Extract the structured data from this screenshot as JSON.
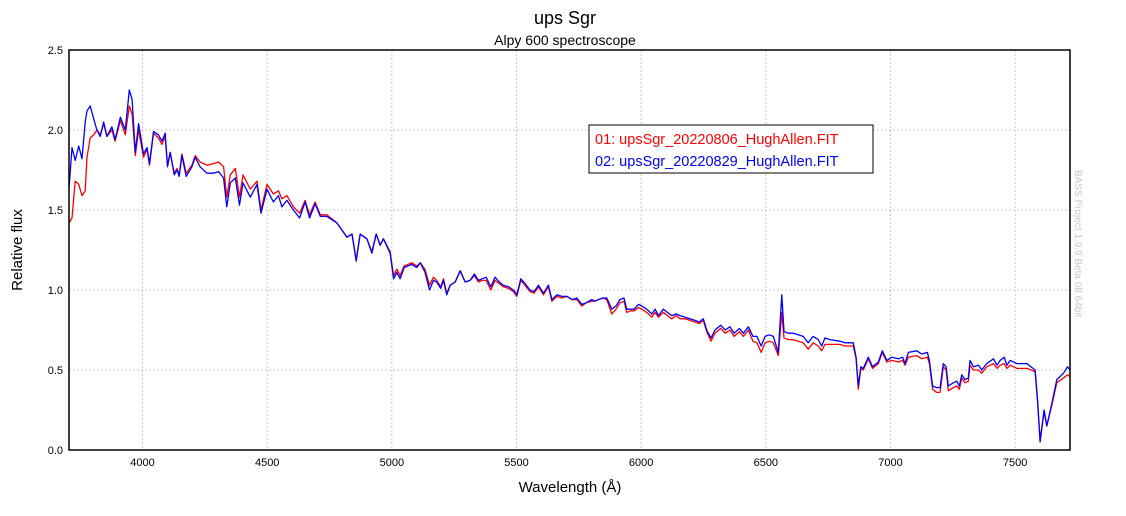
{
  "chart_data": {
    "type": "line",
    "title": "ups Sgr",
    "subtitle": "Alpy 600 spectroscope",
    "xlabel": "Wavelength (Å)",
    "ylabel": "Relative flux",
    "xlim": [
      3705,
      7720
    ],
    "ylim": [
      0.0,
      2.5
    ],
    "xticks": [
      "4000",
      "4500",
      "5000",
      "5500",
      "6000",
      "6500",
      "7000",
      "7500"
    ],
    "yticks": [
      "0.0",
      "0.5",
      "1.0",
      "1.5",
      "2.0",
      "2.5"
    ],
    "grid": true,
    "legend_position": "top-right",
    "watermark": "BASS Project 1.9.9 Beta 08 64bit",
    "x": [
      3706,
      3717,
      3730,
      3744,
      3757,
      3770,
      3777,
      3790,
      3804,
      3817,
      3830,
      3844,
      3857,
      3877,
      3890,
      3911,
      3931,
      3947,
      3958,
      3971,
      3984,
      4004,
      4018,
      4028,
      4044,
      4064,
      4078,
      4091,
      4100,
      4111,
      4127,
      4138,
      4147,
      4158,
      4175,
      4198,
      4211,
      4231,
      4258,
      4285,
      4305,
      4325,
      4338,
      4352,
      4372,
      4389,
      4403,
      4432,
      4459,
      4475,
      4499,
      4525,
      4545,
      4559,
      4579,
      4605,
      4630,
      4652,
      4670,
      4692,
      4713,
      4739,
      4779,
      4820,
      4840,
      4857,
      4873,
      4900,
      4920,
      4937,
      4953,
      4966,
      4993,
      5007,
      5020,
      5033,
      5049,
      5080,
      5100,
      5114,
      5133,
      5151,
      5167,
      5180,
      5196,
      5207,
      5220,
      5234,
      5254,
      5274,
      5294,
      5314,
      5331,
      5347,
      5361,
      5378,
      5397,
      5414,
      5431,
      5447,
      5468,
      5488,
      5501,
      5517,
      5534,
      5554,
      5570,
      5588,
      5608,
      5628,
      5642,
      5662,
      5682,
      5702,
      5722,
      5742,
      5762,
      5779,
      5802,
      5815,
      5828,
      5846,
      5862,
      5882,
      5899,
      5915,
      5931,
      5942,
      5958,
      5972,
      5989,
      6003,
      6022,
      6043,
      6056,
      6069,
      6089,
      6105,
      6123,
      6140,
      6156,
      6176,
      6196,
      6216,
      6233,
      6249,
      6263,
      6280,
      6296,
      6319,
      6337,
      6356,
      6373,
      6394,
      6410,
      6430,
      6448,
      6464,
      6481,
      6497,
      6514,
      6530,
      6550,
      6564,
      6573,
      6590,
      6610,
      6630,
      6650,
      6670,
      6690,
      6710,
      6724,
      6737,
      6757,
      6797,
      6817,
      6851,
      6862,
      6871,
      6881,
      6891,
      6911,
      6928,
      6951,
      6967,
      6985,
      7005,
      7032,
      7049,
      7058,
      7072,
      7105,
      7125,
      7148,
      7156,
      7169,
      7185,
      7199,
      7212,
      7223,
      7232,
      7252,
      7266,
      7276,
      7286,
      7299,
      7312,
      7319,
      7333,
      7353,
      7366,
      7386,
      7413,
      7427,
      7440,
      7456,
      7467,
      7480,
      7507,
      7547,
      7580,
      7590,
      7600,
      7616,
      7627,
      7647,
      7667,
      7694,
      7710,
      7720
    ],
    "series": [
      {
        "name": "01: upsSgr_20220806_HughAllen.FIT",
        "color": "#ff0000",
        "values": [
          1.42,
          1.45,
          1.68,
          1.66,
          1.59,
          1.62,
          1.83,
          1.95,
          1.97,
          2.0,
          1.97,
          2.04,
          1.96,
          2.0,
          1.93,
          2.06,
          1.97,
          2.15,
          2.1,
          1.84,
          2.0,
          1.83,
          1.88,
          1.78,
          1.98,
          1.95,
          1.91,
          1.96,
          1.78,
          1.86,
          1.73,
          1.76,
          1.72,
          1.85,
          1.73,
          1.78,
          1.84,
          1.8,
          1.78,
          1.79,
          1.8,
          1.77,
          1.58,
          1.72,
          1.76,
          1.58,
          1.72,
          1.63,
          1.68,
          1.5,
          1.66,
          1.6,
          1.62,
          1.57,
          1.59,
          1.52,
          1.48,
          1.56,
          1.47,
          1.55,
          1.47,
          1.47,
          1.42,
          1.33,
          1.35,
          1.19,
          1.35,
          1.32,
          1.24,
          1.35,
          1.28,
          1.32,
          1.24,
          1.09,
          1.13,
          1.09,
          1.15,
          1.17,
          1.15,
          1.17,
          1.13,
          1.03,
          1.08,
          1.06,
          1.02,
          1.07,
          0.98,
          1.03,
          1.05,
          1.12,
          1.05,
          1.06,
          1.09,
          1.05,
          1.06,
          1.06,
          1.0,
          1.06,
          1.04,
          1.02,
          1.01,
          0.99,
          0.96,
          1.06,
          1.03,
          0.99,
          0.98,
          1.02,
          0.97,
          1.02,
          0.93,
          0.96,
          0.95,
          0.96,
          0.94,
          0.94,
          0.9,
          0.92,
          0.93,
          0.93,
          0.94,
          0.95,
          0.94,
          0.85,
          0.88,
          0.92,
          0.93,
          0.86,
          0.87,
          0.87,
          0.89,
          0.88,
          0.86,
          0.83,
          0.86,
          0.83,
          0.86,
          0.84,
          0.82,
          0.84,
          0.82,
          0.82,
          0.81,
          0.8,
          0.79,
          0.81,
          0.74,
          0.68,
          0.73,
          0.76,
          0.73,
          0.75,
          0.71,
          0.74,
          0.71,
          0.75,
          0.68,
          0.67,
          0.61,
          0.67,
          0.68,
          0.67,
          0.59,
          0.86,
          0.7,
          0.69,
          0.69,
          0.68,
          0.67,
          0.63,
          0.67,
          0.65,
          0.62,
          0.66,
          0.66,
          0.66,
          0.65,
          0.65,
          0.57,
          0.38,
          0.51,
          0.5,
          0.57,
          0.51,
          0.54,
          0.61,
          0.55,
          0.56,
          0.55,
          0.56,
          0.53,
          0.58,
          0.59,
          0.57,
          0.58,
          0.54,
          0.38,
          0.36,
          0.36,
          0.52,
          0.5,
          0.37,
          0.39,
          0.4,
          0.38,
          0.45,
          0.42,
          0.43,
          0.53,
          0.5,
          0.5,
          0.48,
          0.52,
          0.54,
          0.51,
          0.53,
          0.54,
          0.51,
          0.53,
          0.51,
          0.51,
          0.49,
          0.3,
          0.06,
          0.24,
          0.15,
          0.28,
          0.42,
          0.45,
          0.47,
          0.46
        ]
      },
      {
        "name": "02: upsSgr_20220829_HughAllen.FIT",
        "color": "#0000ff",
        "values": [
          1.65,
          1.89,
          1.81,
          1.9,
          1.82,
          2.05,
          2.12,
          2.15,
          2.07,
          2.0,
          1.96,
          2.05,
          1.96,
          2.02,
          1.94,
          2.08,
          2.0,
          2.25,
          2.19,
          1.86,
          2.04,
          1.85,
          1.89,
          1.79,
          1.99,
          1.97,
          1.93,
          1.98,
          1.77,
          1.86,
          1.72,
          1.75,
          1.71,
          1.84,
          1.71,
          1.77,
          1.83,
          1.77,
          1.73,
          1.73,
          1.74,
          1.7,
          1.52,
          1.67,
          1.7,
          1.53,
          1.67,
          1.58,
          1.66,
          1.48,
          1.63,
          1.55,
          1.59,
          1.52,
          1.56,
          1.5,
          1.45,
          1.55,
          1.45,
          1.54,
          1.46,
          1.46,
          1.42,
          1.33,
          1.35,
          1.18,
          1.35,
          1.32,
          1.23,
          1.35,
          1.28,
          1.32,
          1.23,
          1.07,
          1.11,
          1.07,
          1.14,
          1.16,
          1.14,
          1.17,
          1.11,
          1.0,
          1.06,
          1.05,
          1.01,
          1.06,
          0.97,
          1.03,
          1.05,
          1.12,
          1.05,
          1.06,
          1.1,
          1.06,
          1.07,
          1.08,
          1.02,
          1.08,
          1.05,
          1.03,
          1.02,
          1.0,
          0.97,
          1.07,
          1.04,
          1.0,
          0.99,
          1.03,
          0.98,
          1.03,
          0.94,
          0.97,
          0.96,
          0.96,
          0.94,
          0.95,
          0.91,
          0.92,
          0.94,
          0.93,
          0.94,
          0.95,
          0.95,
          0.88,
          0.9,
          0.94,
          0.95,
          0.88,
          0.88,
          0.88,
          0.91,
          0.9,
          0.88,
          0.85,
          0.88,
          0.84,
          0.88,
          0.86,
          0.84,
          0.85,
          0.84,
          0.83,
          0.82,
          0.81,
          0.8,
          0.82,
          0.75,
          0.7,
          0.75,
          0.78,
          0.75,
          0.77,
          0.73,
          0.76,
          0.73,
          0.77,
          0.71,
          0.71,
          0.65,
          0.71,
          0.72,
          0.71,
          0.61,
          0.97,
          0.74,
          0.73,
          0.73,
          0.72,
          0.71,
          0.67,
          0.71,
          0.69,
          0.65,
          0.7,
          0.69,
          0.68,
          0.67,
          0.67,
          0.58,
          0.4,
          0.52,
          0.51,
          0.58,
          0.52,
          0.55,
          0.62,
          0.56,
          0.58,
          0.57,
          0.58,
          0.54,
          0.61,
          0.62,
          0.6,
          0.61,
          0.56,
          0.4,
          0.39,
          0.39,
          0.54,
          0.52,
          0.4,
          0.42,
          0.43,
          0.4,
          0.47,
          0.44,
          0.45,
          0.56,
          0.52,
          0.53,
          0.5,
          0.54,
          0.57,
          0.53,
          0.56,
          0.58,
          0.53,
          0.56,
          0.54,
          0.54,
          0.5,
          0.31,
          0.05,
          0.25,
          0.15,
          0.29,
          0.44,
          0.48,
          0.52,
          0.5
        ]
      }
    ]
  }
}
